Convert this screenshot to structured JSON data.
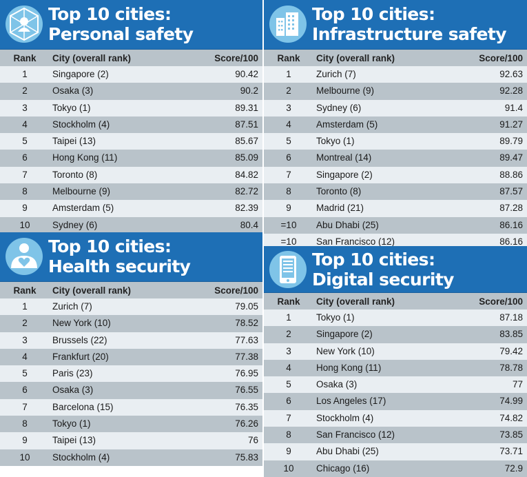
{
  "columns": {
    "rank": "Rank",
    "city": "City (overall rank)",
    "score": "Score/100"
  },
  "colors": {
    "header_blue": "#1e6fb5",
    "row_light": "#e9eef2",
    "row_dark": "#b9c3ca"
  },
  "panels": {
    "personal": {
      "title_line1": "Top 10 cities:",
      "title_line2": "Personal safety",
      "icon": "shield-network-icon",
      "rows": [
        {
          "rank": "1",
          "city": "Singapore (2)",
          "score": "90.42"
        },
        {
          "rank": "2",
          "city": "Osaka (3)",
          "score": "90.2"
        },
        {
          "rank": "3",
          "city": "Tokyo (1)",
          "score": "89.31"
        },
        {
          "rank": "4",
          "city": "Stockholm (4)",
          "score": "87.51"
        },
        {
          "rank": "5",
          "city": "Taipei (13)",
          "score": "85.67"
        },
        {
          "rank": "6",
          "city": "Hong Kong (11)",
          "score": "85.09"
        },
        {
          "rank": "7",
          "city": "Toronto (8)",
          "score": "84.82"
        },
        {
          "rank": "8",
          "city": "Melbourne (9)",
          "score": "82.72"
        },
        {
          "rank": "9",
          "city": "Amsterdam (5)",
          "score": "82.39"
        },
        {
          "rank": "10",
          "city": "Sydney (6)",
          "score": "80.4"
        }
      ]
    },
    "infrastructure": {
      "title_line1": "Top 10 cities:",
      "title_line2": "Infrastructure safety",
      "icon": "building-icon",
      "rows": [
        {
          "rank": "1",
          "city": "Zurich (7)",
          "score": "92.63"
        },
        {
          "rank": "2",
          "city": "Melbourne (9)",
          "score": "92.28"
        },
        {
          "rank": "3",
          "city": "Sydney (6)",
          "score": "91.4"
        },
        {
          "rank": "4",
          "city": "Amsterdam (5)",
          "score": "91.27"
        },
        {
          "rank": "5",
          "city": "Tokyo (1)",
          "score": "89.79"
        },
        {
          "rank": "6",
          "city": "Montreal (14)",
          "score": "89.47"
        },
        {
          "rank": "7",
          "city": "Singapore (2)",
          "score": "88.86"
        },
        {
          "rank": "8",
          "city": "Toronto (8)",
          "score": "87.57"
        },
        {
          "rank": "9",
          "city": "Madrid (21)",
          "score": "87.28"
        },
        {
          "rank": "=10",
          "city": "Abu Dhabi (25)",
          "score": "86.16"
        },
        {
          "rank": "=10",
          "city": "San Francisco (12)",
          "score": "86.16"
        }
      ]
    },
    "health": {
      "title_line1": "Top 10 cities:",
      "title_line2": "Health security",
      "icon": "person-heart-icon",
      "rows": [
        {
          "rank": "1",
          "city": "Zurich (7)",
          "score": "79.05"
        },
        {
          "rank": "2",
          "city": "New York (10)",
          "score": "78.52"
        },
        {
          "rank": "3",
          "city": "Brussels (22)",
          "score": "77.63"
        },
        {
          "rank": "4",
          "city": "Frankfurt (20)",
          "score": "77.38"
        },
        {
          "rank": "5",
          "city": "Paris (23)",
          "score": "76.95"
        },
        {
          "rank": "6",
          "city": "Osaka (3)",
          "score": "76.55"
        },
        {
          "rank": "7",
          "city": "Barcelona (15)",
          "score": "76.35"
        },
        {
          "rank": "8",
          "city": "Tokyo (1)",
          "score": "76.26"
        },
        {
          "rank": "9",
          "city": "Taipei (13)",
          "score": "76"
        },
        {
          "rank": "10",
          "city": "Stockholm (4)",
          "score": "75.83"
        }
      ]
    },
    "digital": {
      "title_line1": "Top 10 cities:",
      "title_line2": "Digital security",
      "icon": "tablet-icon",
      "rows": [
        {
          "rank": "1",
          "city": "Tokyo (1)",
          "score": "87.18"
        },
        {
          "rank": "2",
          "city": "Singapore (2)",
          "score": "83.85"
        },
        {
          "rank": "3",
          "city": "New York (10)",
          "score": "79.42"
        },
        {
          "rank": "4",
          "city": "Hong Kong (11)",
          "score": "78.78"
        },
        {
          "rank": "5",
          "city": "Osaka (3)",
          "score": "77"
        },
        {
          "rank": "6",
          "city": "Los Angeles (17)",
          "score": "74.99"
        },
        {
          "rank": "7",
          "city": "Stockholm (4)",
          "score": "74.82"
        },
        {
          "rank": "8",
          "city": "San Francisco (12)",
          "score": "73.85"
        },
        {
          "rank": "9",
          "city": "Abu Dhabi (25)",
          "score": "73.71"
        },
        {
          "rank": "10",
          "city": "Chicago (16)",
          "score": "72.9"
        }
      ]
    }
  }
}
